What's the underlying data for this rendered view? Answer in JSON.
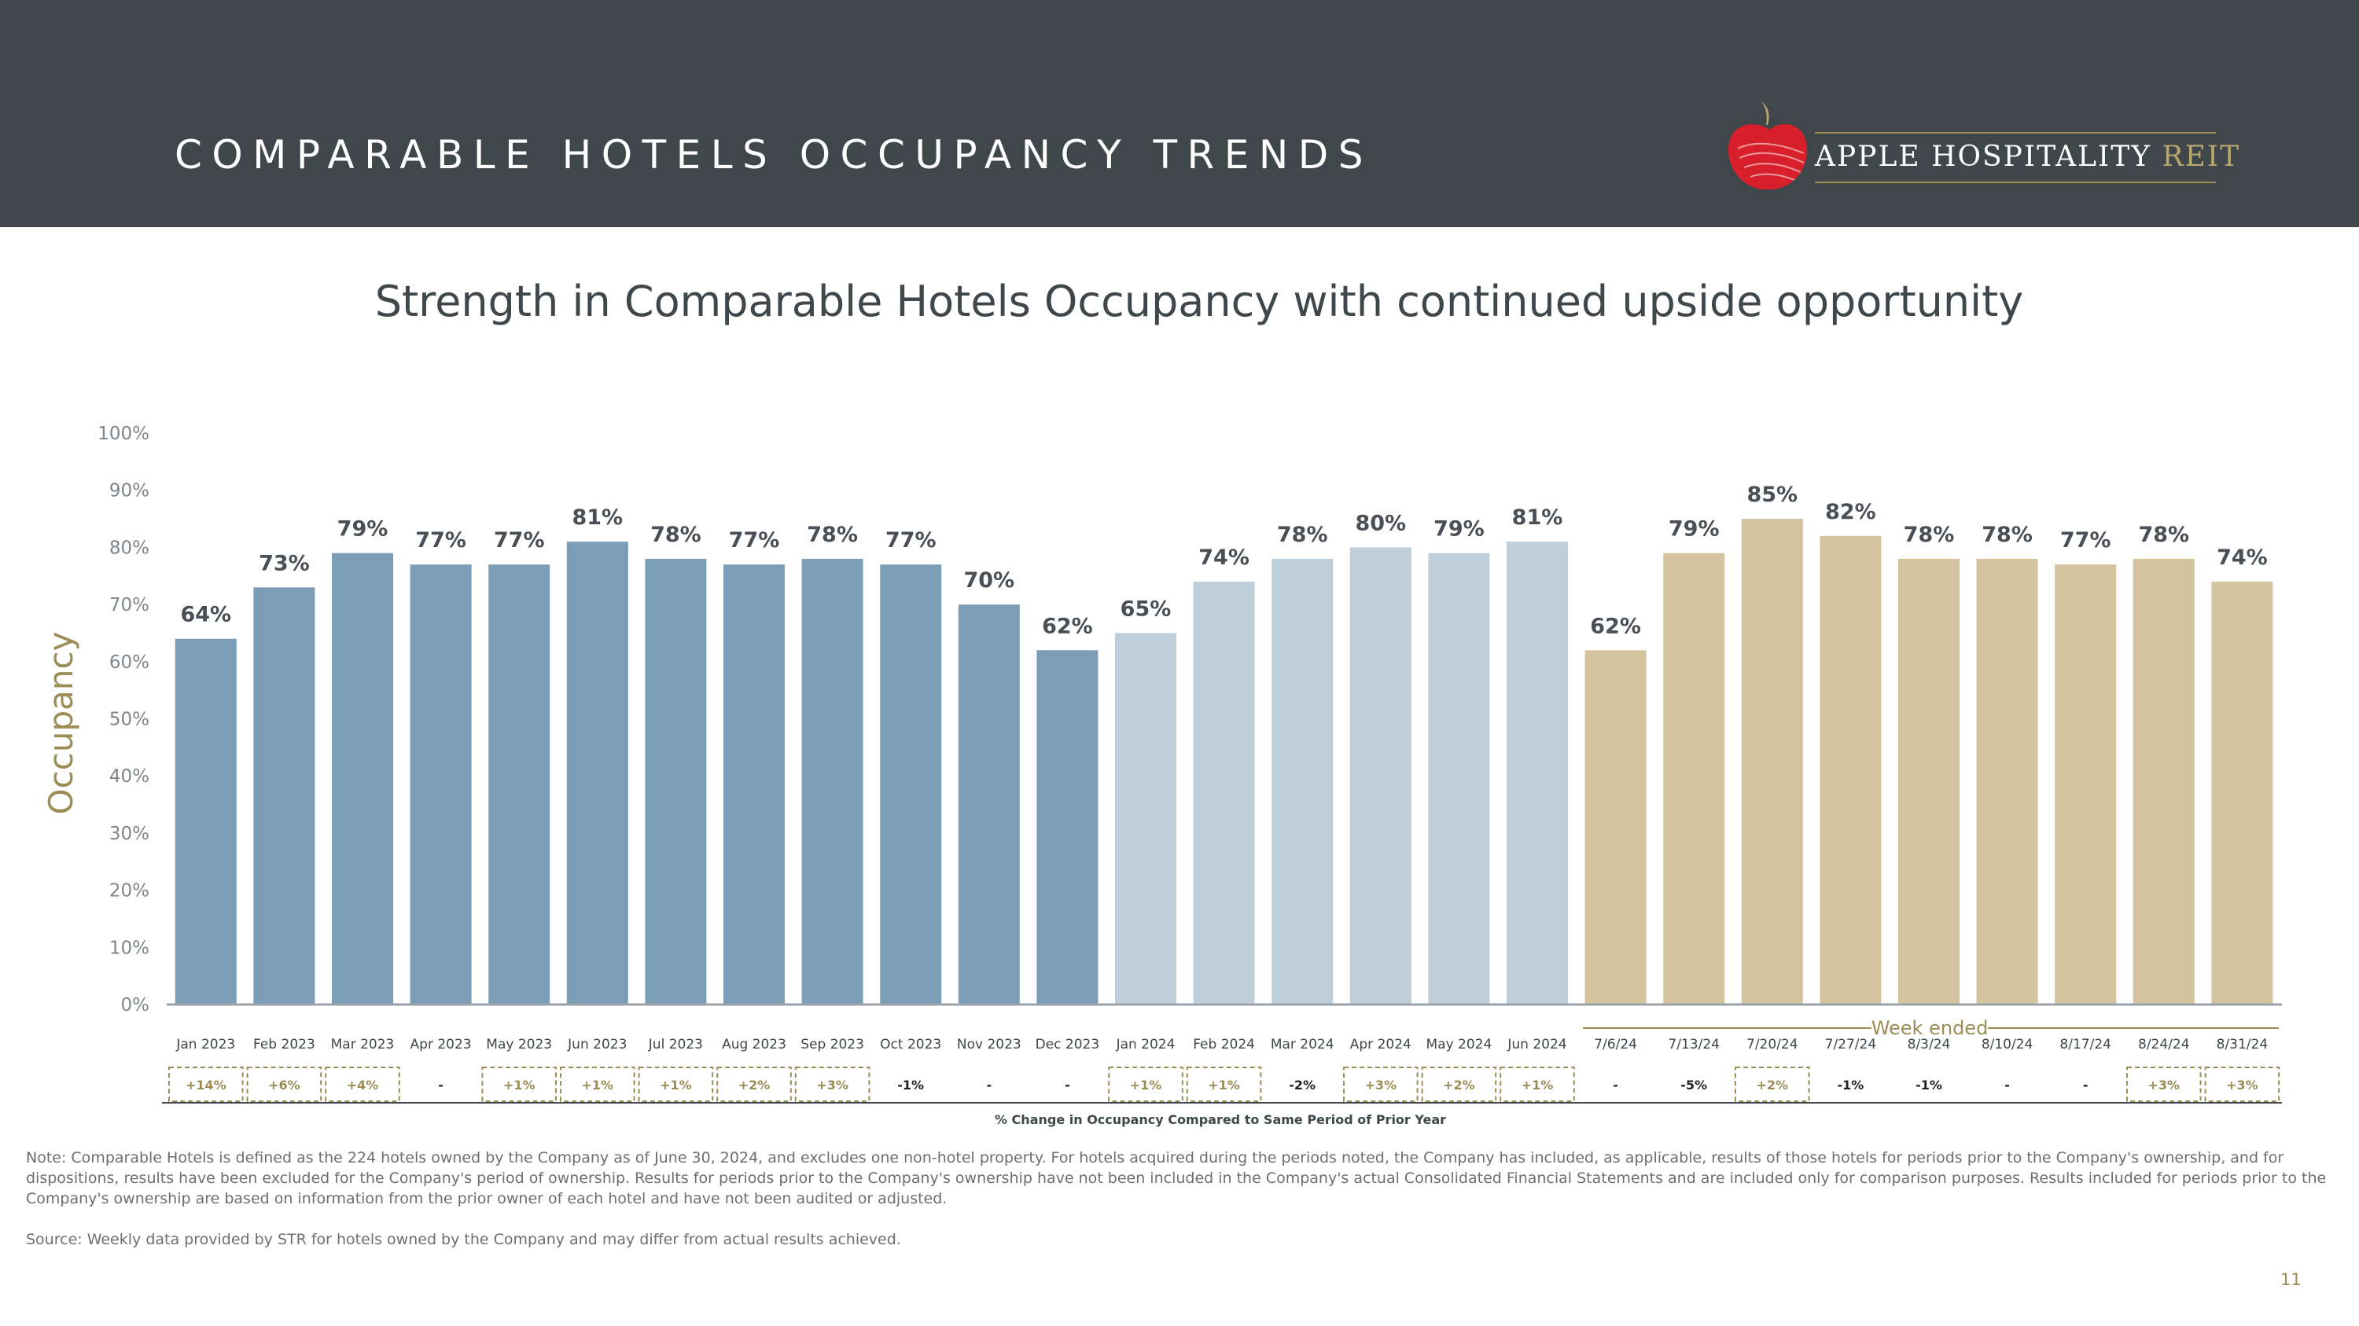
{
  "header": {
    "title": "COMPARABLE HOTELS OCCUPANCY TRENDS"
  },
  "logo": {
    "brand": "APPLE HOSPITALITY",
    "suffix": "REIT"
  },
  "subtitle": "Strength in Comparable Hotels Occupancy with continued upside opportunity",
  "colors": {
    "header_bg": "#3f474b",
    "bar_2023": "#7b9eb6",
    "bar_2024": "#bfcfda",
    "bar_weekly": "#d3c39f",
    "accent": "#9c8c55",
    "brand_red": "#d8202c"
  },
  "chart_data": {
    "type": "bar",
    "ylabel": "Occupancy",
    "ylim": [
      0,
      100
    ],
    "yticks": [
      "0%",
      "10%",
      "20%",
      "30%",
      "40%",
      "50%",
      "60%",
      "70%",
      "80%",
      "90%",
      "100%"
    ],
    "group_label": "Week ended",
    "change_caption": "% Change in Occupancy Compared to Same Period of Prior Year",
    "categories": [
      "Jan 2023",
      "Feb 2023",
      "Mar 2023",
      "Apr 2023",
      "May 2023",
      "Jun 2023",
      "Jul 2023",
      "Aug 2023",
      "Sep 2023",
      "Oct 2023",
      "Nov 2023",
      "Dec 2023",
      "Jan 2024",
      "Feb 2024",
      "Mar 2024",
      "Apr 2024",
      "May 2024",
      "Jun 2024",
      "7/6/24",
      "7/13/24",
      "7/20/24",
      "7/27/24",
      "8/3/24",
      "8/10/24",
      "8/17/24",
      "8/24/24",
      "8/31/24"
    ],
    "values": [
      64,
      73,
      79,
      77,
      77,
      81,
      78,
      77,
      78,
      77,
      70,
      62,
      65,
      74,
      78,
      80,
      79,
      81,
      62,
      79,
      85,
      82,
      78,
      78,
      77,
      78,
      74
    ],
    "value_labels": [
      "64%",
      "73%",
      "79%",
      "77%",
      "77%",
      "81%",
      "78%",
      "77%",
      "78%",
      "77%",
      "70%",
      "62%",
      "65%",
      "74%",
      "78%",
      "80%",
      "79%",
      "81%",
      "62%",
      "79%",
      "85%",
      "82%",
      "78%",
      "78%",
      "77%",
      "78%",
      "74%"
    ],
    "groups": [
      "2023",
      "2023",
      "2023",
      "2023",
      "2023",
      "2023",
      "2023",
      "2023",
      "2023",
      "2023",
      "2023",
      "2023",
      "2024",
      "2024",
      "2024",
      "2024",
      "2024",
      "2024",
      "weekly",
      "weekly",
      "weekly",
      "weekly",
      "weekly",
      "weekly",
      "weekly",
      "weekly",
      "weekly"
    ],
    "pct_change": [
      "+14%",
      "+6%",
      "+4%",
      "-",
      "+1%",
      "+1%",
      "+1%",
      "+2%",
      "+3%",
      "-1%",
      "-",
      "-",
      "+1%",
      "+1%",
      "-2%",
      "+3%",
      "+2%",
      "+1%",
      "-",
      "-5%",
      "+2%",
      "-1%",
      "-1%",
      "-",
      "-",
      "+3%",
      "+3%"
    ]
  },
  "footer": {
    "note": "Note: Comparable Hotels is defined as the 224 hotels owned by the Company as of June 30, 2024, and excludes one non-hotel property. For hotels acquired during the periods noted, the Company has included, as applicable, results of those hotels for periods prior to the Company's ownership, and for dispositions, results have been excluded for the Company's period of ownership. Results for periods prior to the Company's ownership have not been included in the Company's actual Consolidated Financial Statements and are included only for comparison purposes. Results included for periods prior to the Company's ownership are based on information from the prior owner of each hotel and have not been audited or adjusted.",
    "source": "Source:  Weekly data provided by STR for hotels owned by the Company and may differ from actual results achieved.",
    "page_number": "11"
  }
}
